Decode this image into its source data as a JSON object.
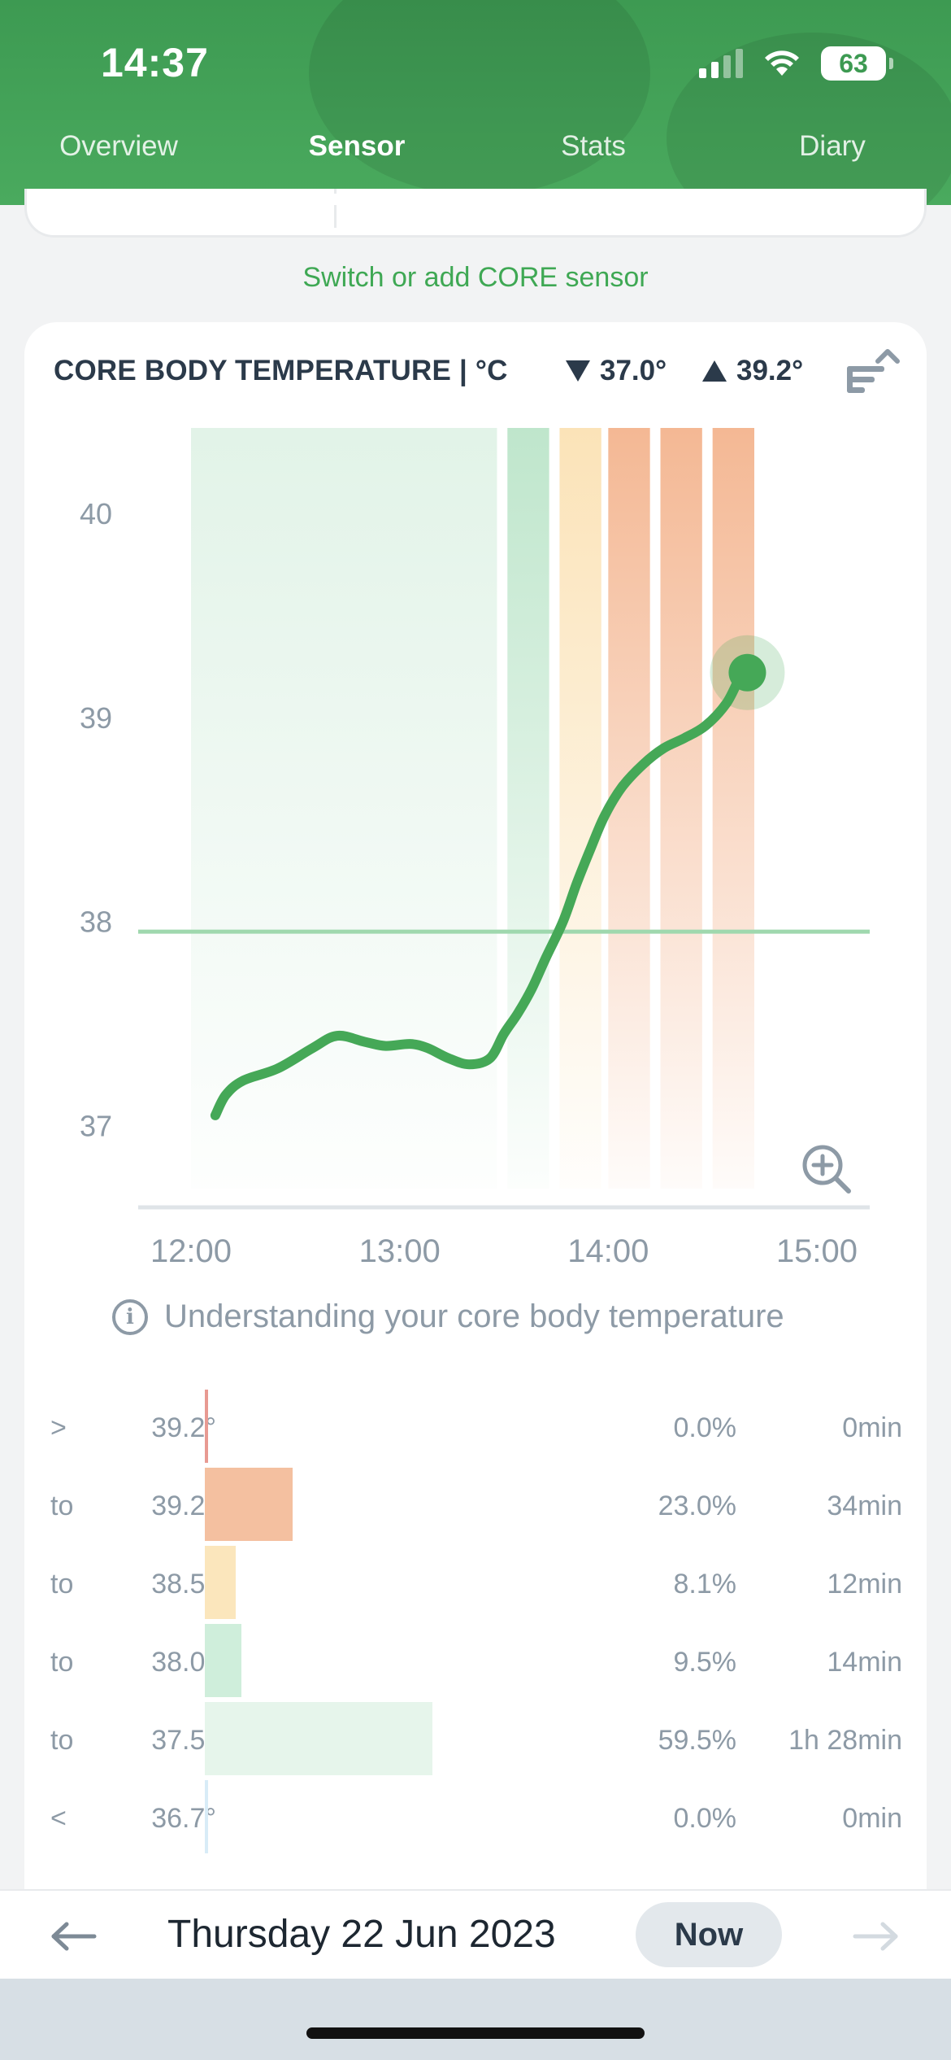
{
  "status_bar": {
    "time": "14:37",
    "battery": "63"
  },
  "tabs": [
    {
      "label": "Overview",
      "active": false
    },
    {
      "label": "Sensor",
      "active": true
    },
    {
      "label": "Stats",
      "active": false
    },
    {
      "label": "Diary",
      "active": false
    }
  ],
  "switch_link": "Switch or add CORE sensor",
  "card": {
    "title": "CORE BODY TEMPERATURE | °C",
    "min_label": "37.0°",
    "max_label": "39.2°",
    "info_text": "Understanding your core body temperature"
  },
  "chart_data": {
    "type": "line",
    "title": "CORE BODY TEMPERATURE | °C",
    "xlabel": "",
    "ylabel": "",
    "ylim": [
      36.85,
      40.2
    ],
    "xlim": [
      "12:00",
      "15:00"
    ],
    "x_ticks": [
      "12:00",
      "13:00",
      "14:00",
      "15:00"
    ],
    "y_ticks": [
      "37",
      "38",
      "39",
      "40"
    ],
    "threshold": 37.95,
    "grid": false,
    "series": [
      {
        "color": "#45a857",
        "x": [
          "12:07",
          "12:10",
          "12:15",
          "12:25",
          "12:35",
          "12:42",
          "12:50",
          "12:56",
          "13:03",
          "13:08",
          "13:14",
          "13:20",
          "13:26",
          "13:30",
          "13:34",
          "13:38",
          "13:42",
          "13:47",
          "13:51",
          "13:55",
          "13:59",
          "14:04",
          "14:10",
          "14:16",
          "14:22",
          "14:28",
          "14:34",
          "14:38",
          "14:40"
        ],
        "y": [
          37.05,
          37.15,
          37.22,
          37.28,
          37.38,
          37.44,
          37.41,
          37.39,
          37.4,
          37.38,
          37.33,
          37.3,
          37.33,
          37.45,
          37.55,
          37.67,
          37.82,
          38.0,
          38.19,
          38.36,
          38.52,
          38.66,
          38.77,
          38.85,
          38.9,
          38.96,
          39.07,
          39.2,
          39.22
        ]
      }
    ],
    "zone_bands": [
      {
        "from": "12:00",
        "to": "13:28",
        "zone": "to 37.5°",
        "color": "#d8efe0"
      },
      {
        "from": "13:31",
        "to": "13:43",
        "zone": "to 38.0°",
        "color": "#bfe6cc"
      },
      {
        "from": "13:46",
        "to": "13:58",
        "zone": "to 38.5°",
        "color": "#fbe3b8"
      },
      {
        "from": "14:00",
        "to": "14:12",
        "zone": "to 39.2°",
        "color": "#f4b894"
      },
      {
        "from": "14:15",
        "to": "14:27",
        "zone": "to 39.2°",
        "color": "#f4b894"
      },
      {
        "from": "14:30",
        "to": "14:42",
        "zone": "to 39.2°",
        "color": "#f4b894"
      }
    ],
    "current_point": {
      "x": "14:40",
      "y": 39.22
    }
  },
  "zones": [
    {
      "prefix": ">",
      "temp": "39.2°",
      "pct": "0.0%",
      "duration": "0min",
      "fraction": 0.0,
      "color": "#e89a92"
    },
    {
      "prefix": "to",
      "temp": "39.2°",
      "pct": "23.0%",
      "duration": "34min",
      "fraction": 0.23,
      "color": "#f4c0a0"
    },
    {
      "prefix": "to",
      "temp": "38.5°",
      "pct": "8.1%",
      "duration": "12min",
      "fraction": 0.081,
      "color": "#fbe6bc"
    },
    {
      "prefix": "to",
      "temp": "38.0°",
      "pct": "9.5%",
      "duration": "14min",
      "fraction": 0.095,
      "color": "#cfeedb"
    },
    {
      "prefix": "to",
      "temp": "37.5°",
      "pct": "59.5%",
      "duration": "1h 28min",
      "fraction": 0.595,
      "color": "#e6f5eb"
    },
    {
      "prefix": "<",
      "temp": "36.7°",
      "pct": "0.0%",
      "duration": "0min",
      "fraction": 0.0,
      "color": "#d8ecf7"
    }
  ],
  "bottom_nav": {
    "date": "Thursday 22 Jun 2023",
    "now_label": "Now"
  },
  "colors": {
    "brand": "#4aaa5e",
    "line": "#45a857",
    "threshold": "#9fd8ae"
  },
  "icons": [
    "signal-icon",
    "wifi-icon",
    "battery-icon",
    "sort-icon",
    "zoom-in-icon",
    "info-icon",
    "arrow-left-icon",
    "arrow-right-icon"
  ]
}
